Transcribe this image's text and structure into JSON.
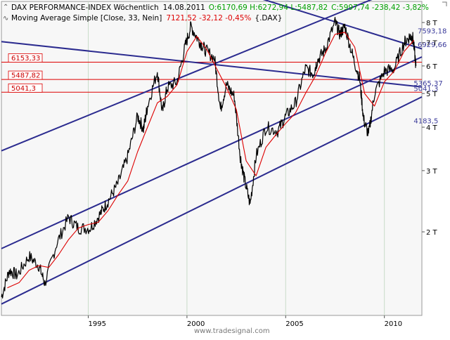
{
  "header": {
    "line1_name": "DAX PERFORMANCE-INDEX Wöchentlich",
    "line1_date": "14.08.2011",
    "line1_ohlc": "O:6170,69 H:6272,94 L:5487,82",
    "line1_close": "C:5997,74 -238,42 -3,82%",
    "line2_name": "Moving Average Simple [Close, 33, Nein]",
    "line2_value": "7121,52 -32,12 -0,45%",
    "line2_symbol": "{.DAX}"
  },
  "watermark": "www.tradesignal.com",
  "colors": {
    "background": "#ffffff",
    "plot_background": "#f7f7f7",
    "price": "#000000",
    "moving_average": "#dd0000",
    "channel": "#2b2b8f",
    "horizontal_level": "#dd0000",
    "label_red": "#cc0000",
    "label_blue": "#3a3a9a",
    "gridline": "#c9dcc9",
    "axis_text": "#000000"
  },
  "chart_data": {
    "type": "line",
    "y_scale": "log",
    "xlim": [
      1990.6,
      2011.9
    ],
    "ylim": [
      1150,
      9200
    ],
    "x_ticks": [
      1995,
      2000,
      2005,
      2010
    ],
    "x_tick_labels": [
      "1995",
      "2000",
      "2005",
      "2010"
    ],
    "y_ticks": [
      2000,
      3000,
      4000,
      5000,
      6000,
      7000,
      8000
    ],
    "y_tick_labels": [
      "2 T",
      "3 T",
      "4 T",
      "5 T",
      "6 T",
      "7 T",
      "8 T"
    ],
    "grid": "vertical",
    "series": [
      {
        "name": "DAX PERFORMANCE-INDEX Wöchentlich",
        "role": "price",
        "x": [
          1990.6,
          1991.0,
          1991.4,
          1992.0,
          1992.5,
          1992.8,
          1993.4,
          1994.0,
          1994.5,
          1995.1,
          1995.6,
          1996.0,
          1996.5,
          1997.0,
          1997.5,
          1997.8,
          1998.0,
          1998.5,
          1998.75,
          1999.0,
          1999.5,
          1999.9,
          2000.2,
          2000.6,
          2000.9,
          2001.4,
          2001.7,
          2002.0,
          2002.4,
          2002.7,
          2002.9,
          2003.2,
          2003.5,
          2004.0,
          2004.6,
          2005.0,
          2005.5,
          2006.0,
          2006.4,
          2006.6,
          2007.0,
          2007.5,
          2007.75,
          2008.0,
          2008.4,
          2008.75,
          2008.95,
          2009.2,
          2009.5,
          2010.0,
          2010.5,
          2011.0,
          2011.3,
          2011.45,
          2011.6
        ],
        "values": [
          1300,
          1550,
          1500,
          1700,
          1600,
          1420,
          1850,
          2200,
          2050,
          2050,
          2250,
          2450,
          2750,
          3300,
          4300,
          3950,
          4600,
          5800,
          4400,
          5200,
          5400,
          6800,
          7800,
          7100,
          6700,
          6300,
          4500,
          5300,
          4900,
          3300,
          2850,
          2400,
          3300,
          4000,
          3900,
          4300,
          4700,
          5900,
          5700,
          6200,
          6700,
          8000,
          7400,
          7800,
          6400,
          5500,
          4200,
          3800,
          5000,
          5800,
          5900,
          7000,
          7300,
          7200,
          6000
        ]
      },
      {
        "name": "Moving Average Simple [Close, 33, Nein]",
        "role": "moving_average",
        "x": [
          1990.9,
          1991.5,
          1992.0,
          1992.5,
          1993.0,
          1993.5,
          1994.0,
          1994.5,
          1995.0,
          1995.5,
          1996.0,
          1996.5,
          1997.0,
          1997.5,
          1998.0,
          1998.5,
          1999.0,
          1999.5,
          2000.0,
          2000.5,
          2001.0,
          2001.5,
          2002.0,
          2002.5,
          2003.0,
          2003.5,
          2004.0,
          2004.5,
          2005.0,
          2005.5,
          2006.0,
          2006.5,
          2007.0,
          2007.5,
          2008.0,
          2008.5,
          2009.0,
          2009.5,
          2010.0,
          2010.5,
          2011.0,
          2011.5
        ],
        "values": [
          1380,
          1430,
          1550,
          1600,
          1580,
          1720,
          1900,
          2050,
          2100,
          2130,
          2300,
          2550,
          2800,
          3400,
          4000,
          4700,
          4900,
          5300,
          6600,
          7300,
          6700,
          5900,
          5200,
          4500,
          3200,
          2900,
          3500,
          3800,
          4100,
          4400,
          5000,
          5600,
          6500,
          7400,
          7500,
          6800,
          5000,
          4600,
          5400,
          5800,
          6600,
          7120
        ]
      }
    ],
    "trendlines": [
      {
        "role": "channel_top",
        "x": [
          1990.6,
          2011.9
        ],
        "values": [
          3420,
          10670
        ]
      },
      {
        "role": "channel_mid",
        "x": [
          1990.6,
          2011.9
        ],
        "values": [
          1790,
          6370
        ]
      },
      {
        "role": "channel_low",
        "x": [
          1990.6,
          2011.9
        ],
        "values": [
          1240,
          4890
        ]
      },
      {
        "role": "descending_upper",
        "x": [
          1990.6,
          2011.9
        ],
        "values": [
          16000,
          6720
        ]
      },
      {
        "role": "descending_lower",
        "x": [
          1990.6,
          2011.9
        ],
        "values": [
          7050,
          5220
        ]
      }
    ],
    "horizontal_levels": [
      {
        "value": 6153.33,
        "label": "6153,33"
      },
      {
        "value": 5487.82,
        "label": "5487,82"
      },
      {
        "value": 5041.3,
        "label": "5041,3"
      }
    ],
    "annotations": [
      {
        "text": "7593,18",
        "x": 2011.4,
        "y": 7593.18,
        "color": "blue"
      },
      {
        "text": "6929,66",
        "x": 2011.4,
        "y": 6929.66,
        "color": "blue"
      },
      {
        "text": "5365,37",
        "x": 2011.2,
        "y": 5365.37,
        "color": "blue"
      },
      {
        "text": "5041,3",
        "x": 2011.2,
        "y": 5180,
        "color": "blue"
      },
      {
        "text": "4183,5",
        "x": 2011.2,
        "y": 4183.5,
        "color": "blue"
      }
    ]
  }
}
